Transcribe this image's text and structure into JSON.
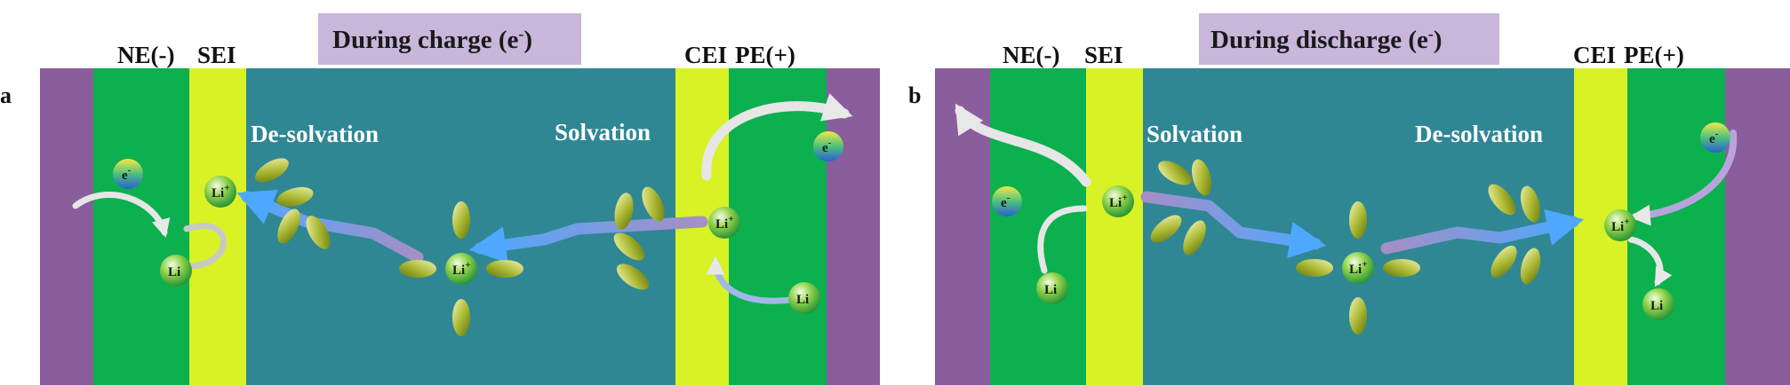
{
  "panels": {
    "a": {
      "letter": "a",
      "title": "During charge (e",
      "title_sup": "-",
      "title_close": ")",
      "ne_label": "NE(-)",
      "sei_label": "SEI",
      "cei_label": "CEI",
      "pe_label": "PE(+)",
      "desolvation_label": "De-solvation",
      "solvation_label": "Solvation"
    },
    "b": {
      "letter": "b",
      "title": "During discharge (e",
      "title_sup": "-",
      "title_close": ")",
      "ne_label": "NE(-)",
      "sei_label": "SEI",
      "cei_label": "CEI",
      "pe_label": "PE(+)",
      "solvation_label": "Solvation",
      "desolvation_label": "De-solvation"
    }
  },
  "species": {
    "lithium_ion": "Li",
    "lithium_ion_charge": "+",
    "lithium_metal": "Li",
    "electron": "e",
    "electron_charge": "-"
  },
  "colors": {
    "current_collector": "#8a5d9c",
    "electrode": "#0cb04f",
    "interphase": "#d9f225",
    "electrolyte": "#2f8794",
    "title_box": "#c9b6db",
    "ion_path": "#5aa8f0",
    "ion_path_tail": "#9b8bc8"
  }
}
